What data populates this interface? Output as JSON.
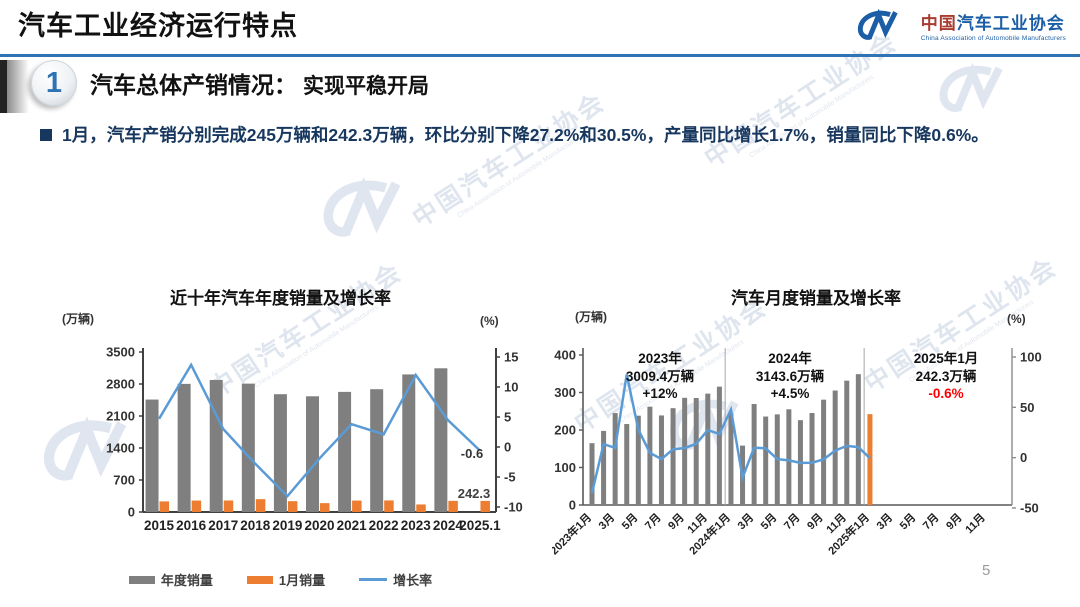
{
  "header": {
    "title": "汽车工业经济运行特点",
    "logo": {
      "mark": "CM-logo",
      "name_cn_1": "中国",
      "name_cn_2": "汽车工业协会",
      "name_en": "China Association of Automobile Manufacturers"
    }
  },
  "section": {
    "number": "1",
    "title": "汽车总体产销情况：",
    "subtitle": "实现平稳开局",
    "bullet_text": "1月，汽车产销分别完成245万辆和242.3万辆，环比分别下降27.2%和30.5%，产量同比增长1.7%，销量同比下降0.6%。"
  },
  "watermark": {
    "text_cn": "中国汽车工业协会",
    "text_en": "China Association of Automobile Manufacturers"
  },
  "footer": {
    "page_number": "5"
  },
  "colors": {
    "accent_blue": "#2E74B5",
    "navy_text": "#17375E",
    "bar_gray": "#7F7F7F",
    "bar_orange": "#ED7D31",
    "line_blue": "#5B9BD5",
    "red": "#FF0000",
    "logo_blue": "#1B5EA6",
    "logo_red": "#A93B30"
  },
  "chart_data": [
    {
      "type": "bar+line",
      "title": "近十年汽车年度销量及增长率",
      "left_axis_label": "(万辆)",
      "right_axis_label": "(%)",
      "left_axis_ticks": [
        0,
        700,
        1400,
        2100,
        2800,
        3500
      ],
      "right_axis_ticks": [
        -10,
        -5,
        0,
        5,
        10,
        15
      ],
      "left_ylim": [
        0,
        3500
      ],
      "right_ylim": [
        -10,
        15
      ],
      "grid": false,
      "legend_position": "bottom",
      "categories": [
        "2015",
        "2016",
        "2017",
        "2018",
        "2019",
        "2020",
        "2021",
        "2022",
        "2023",
        "2024",
        "2025.1"
      ],
      "series": [
        {
          "name": "年度销量",
          "type": "bar",
          "axis": "left",
          "color": "#7F7F7F",
          "values": [
            2459.8,
            2802.8,
            2887.9,
            2808.1,
            2576.9,
            2531.1,
            2627.5,
            2686.4,
            3009.4,
            3143.6,
            null
          ]
        },
        {
          "name": "1月销量",
          "type": "bar",
          "axis": "left",
          "color": "#ED7D31",
          "values": [
            232.0,
            250.1,
            252.0,
            280.9,
            236.7,
            194.1,
            250.3,
            253.1,
            164.9,
            243.9,
            242.3
          ]
        },
        {
          "name": "增长率",
          "type": "line",
          "axis": "right",
          "color": "#5B9BD5",
          "values": [
            4.7,
            13.7,
            3.0,
            -2.8,
            -8.2,
            -1.9,
            3.8,
            2.1,
            12.0,
            4.5,
            -0.6
          ]
        }
      ],
      "data_labels": [
        {
          "text": "242.3",
          "refers_to": "2025.1 1月销量"
        },
        {
          "text": "-0.6",
          "refers_to": "2025.1 增长率"
        }
      ]
    },
    {
      "type": "bar+line",
      "title": "汽车月度销量及增长率",
      "left_axis_label": "(万辆)",
      "right_axis_label": "(%)",
      "left_axis_ticks": [
        0,
        100,
        200,
        300,
        400
      ],
      "right_axis_ticks": [
        -50,
        0,
        50,
        100
      ],
      "left_ylim": [
        0,
        400
      ],
      "right_ylim": [
        -50,
        100
      ],
      "grid": false,
      "x_tick_labels": [
        "2023年1月",
        "3月",
        "5月",
        "7月",
        "9月",
        "11月",
        "2024年1月",
        "3月",
        "5月",
        "7月",
        "9月",
        "11月",
        "2025年1月",
        "3月",
        "5月",
        "7月",
        "9月",
        "11月"
      ],
      "x_months_total": 35,
      "series": [
        {
          "name": "月度销量",
          "type": "bar",
          "axis": "left",
          "color": "#7F7F7F",
          "highlight_index": 24,
          "highlight_color": "#ED7D31",
          "values": [
            164.9,
            197.6,
            245.1,
            215.9,
            238.2,
            262.2,
            238.8,
            258.2,
            285.8,
            285.3,
            297.0,
            315.6,
            243.9,
            158.4,
            269.4,
            235.9,
            241.7,
            255.2,
            226.2,
            245.3,
            280.9,
            305.3,
            331.6,
            348.9,
            242.3
          ]
        },
        {
          "name": "增长率",
          "type": "line",
          "axis": "right",
          "color": "#5B9BD5",
          "values": [
            -35.0,
            13.5,
            9.7,
            82.7,
            27.9,
            4.8,
            -1.4,
            8.4,
            9.5,
            13.8,
            27.4,
            23.5,
            47.9,
            -19.9,
            9.9,
            9.3,
            -1.4,
            -2.7,
            -5.2,
            -5.0,
            -1.7,
            7.0,
            11.7,
            10.5,
            -0.6
          ]
        }
      ],
      "year_separators_after_month_index": [
        11,
        23
      ],
      "annotations": [
        {
          "lines": [
            "2023年",
            "3009.4万辆",
            "+12%"
          ],
          "highlight_last_line": false
        },
        {
          "lines": [
            "2024年",
            "3143.6万辆",
            "+4.5%"
          ],
          "highlight_last_line": false
        },
        {
          "lines": [
            "2025年1月",
            "242.3万辆",
            "-0.6%"
          ],
          "highlight_last_line": true
        }
      ]
    }
  ]
}
